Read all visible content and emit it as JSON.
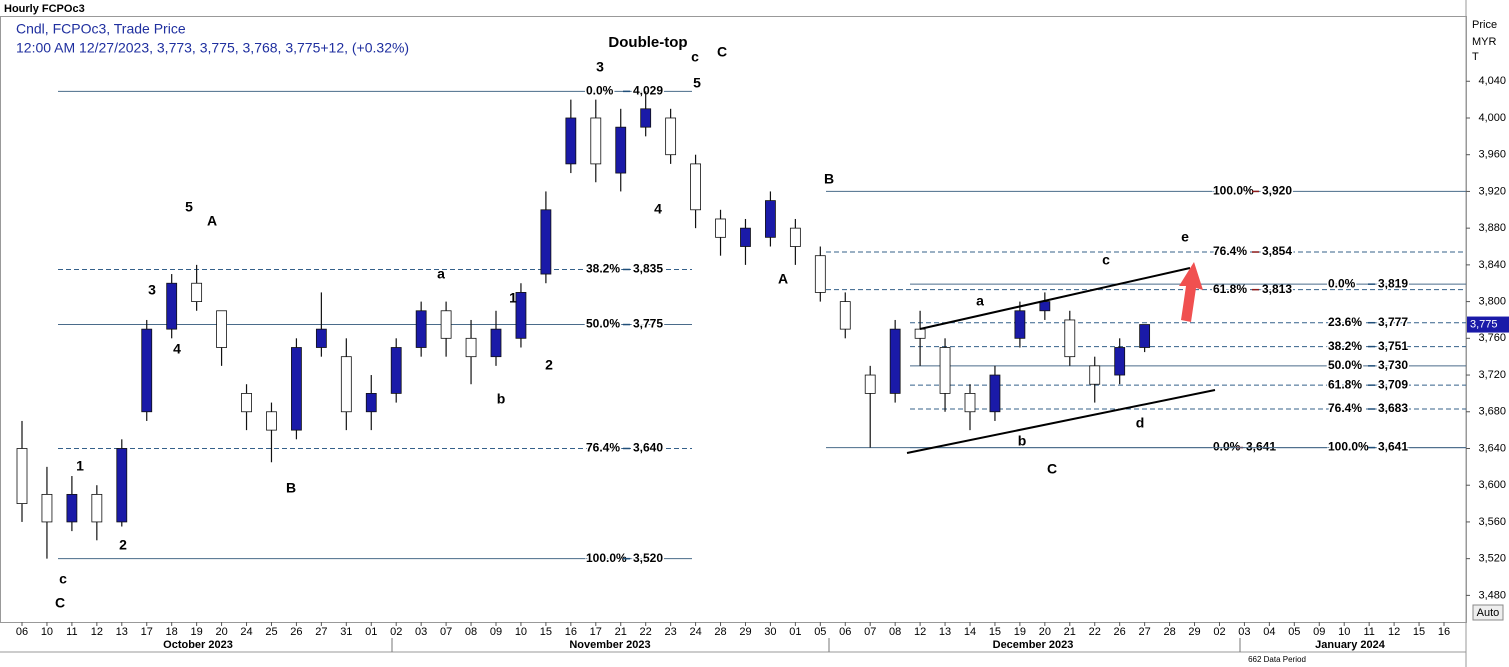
{
  "header": {
    "title": "Hourly FCPOc3",
    "series_label": "Cndl, FCPOc3, Trade Price",
    "info": "12:00 AM 12/27/2023, 3,773, 3,775, 3,768, 3,775+12, (+0.32%)"
  },
  "chart_data": {
    "type": "candlestick",
    "y_axis_title": "Price",
    "y_axis_unit": "MYR",
    "y_axis_sub": "T",
    "auto_label": "Auto",
    "months": [
      "October 2023",
      "November 2023",
      "December 2023",
      "January 2024"
    ],
    "data_period": "662 Data Period",
    "categories": [
      "06",
      "10",
      "11",
      "12",
      "13",
      "17",
      "18",
      "19",
      "20",
      "24",
      "25",
      "26",
      "27",
      "31",
      "01",
      "02",
      "03",
      "07",
      "08",
      "09",
      "10",
      "15",
      "16",
      "17",
      "21",
      "22",
      "23",
      "24",
      "28",
      "29",
      "30",
      "01",
      "05",
      "06",
      "07",
      "08",
      "12",
      "13",
      "14",
      "15",
      "19",
      "20",
      "21",
      "22",
      "26",
      "27",
      "28",
      "29",
      "02",
      "03",
      "04",
      "05",
      "09",
      "10",
      "11",
      "12",
      "15",
      "16"
    ],
    "open": [
      3640,
      3590,
      3560,
      3590,
      3560,
      3680,
      3770,
      3820,
      3790,
      3700,
      3680,
      3660,
      3750,
      3740,
      3680,
      3700,
      3750,
      3790,
      3760,
      3740,
      3760,
      3830,
      3950,
      4000,
      3940,
      3990,
      4000,
      3950,
      3890,
      3860,
      3870,
      3880,
      3850,
      3800,
      3720,
      3700,
      3770,
      3750,
      3700,
      3680,
      3760,
      3790,
      3780,
      3730,
      3720,
      3750,
      null,
      null,
      null,
      null,
      null,
      null,
      null,
      null,
      null,
      null,
      null,
      null
    ],
    "high": [
      3670,
      3620,
      3610,
      3600,
      3650,
      3780,
      3830,
      3840,
      3790,
      3710,
      3690,
      3760,
      3810,
      3760,
      3720,
      3760,
      3800,
      3800,
      3780,
      3790,
      3820,
      3920,
      4020,
      4020,
      4010,
      4029,
      4010,
      3960,
      3900,
      3890,
      3920,
      3890,
      3860,
      3810,
      3730,
      3780,
      3790,
      3760,
      3710,
      3730,
      3800,
      3810,
      3790,
      3740,
      3760,
      3775,
      null,
      null,
      null,
      null,
      null,
      null,
      null,
      null,
      null,
      null,
      null,
      null
    ],
    "low": [
      3560,
      3520,
      3550,
      3540,
      3555,
      3670,
      3760,
      3790,
      3730,
      3660,
      3625,
      3650,
      3740,
      3660,
      3660,
      3690,
      3740,
      3740,
      3710,
      3730,
      3750,
      3820,
      3940,
      3930,
      3920,
      3980,
      3950,
      3880,
      3850,
      3840,
      3860,
      3840,
      3800,
      3760,
      3641,
      3690,
      3730,
      3680,
      3660,
      3670,
      3750,
      3780,
      3730,
      3690,
      3710,
      3745,
      null,
      null,
      null,
      null,
      null,
      null,
      null,
      null,
      null,
      null,
      null,
      null
    ],
    "close": [
      3580,
      3560,
      3590,
      3560,
      3640,
      3770,
      3820,
      3800,
      3750,
      3680,
      3660,
      3750,
      3770,
      3680,
      3700,
      3750,
      3790,
      3760,
      3740,
      3770,
      3810,
      3900,
      4000,
      3950,
      3990,
      4010,
      3960,
      3900,
      3870,
      3880,
      3910,
      3860,
      3810,
      3770,
      3700,
      3770,
      3760,
      3700,
      3680,
      3720,
      3790,
      3800,
      3740,
      3710,
      3750,
      3775,
      null,
      null,
      null,
      null,
      null,
      null,
      null,
      null,
      null,
      null,
      null,
      null
    ],
    "up_color": "#1a1aa8",
    "down_color": "#ffffff",
    "ylim": [
      3451,
      4110
    ],
    "yticks": [
      {
        "value": 3480,
        "label": "3,480"
      },
      {
        "value": 3520,
        "label": "3,520"
      },
      {
        "value": 3560,
        "label": "3,560"
      },
      {
        "value": 3600,
        "label": "3,600"
      },
      {
        "value": 3640,
        "label": "3,640"
      },
      {
        "value": 3680,
        "label": "3,680"
      },
      {
        "value": 3720,
        "label": "3,720"
      },
      {
        "value": 3760,
        "label": "3,760"
      },
      {
        "value": 3800,
        "label": "3,800"
      },
      {
        "value": 3840,
        "label": "3,840"
      },
      {
        "value": 3880,
        "label": "3,880"
      },
      {
        "value": 3920,
        "label": "3,920"
      },
      {
        "value": 3960,
        "label": "3,960"
      },
      {
        "value": 4000,
        "label": "4,000"
      },
      {
        "value": 4040,
        "label": "4,040"
      }
    ],
    "last_price": {
      "value": 3775,
      "label": "3,775"
    },
    "fib_sets": [
      {
        "color": "#1f4e79",
        "levels": [
          {
            "pct": "0.0%",
            "value": 4029,
            "label": "4,029",
            "style": "solid"
          },
          {
            "pct": "38.2%",
            "value": 3835,
            "label": "3,835",
            "style": "dashed"
          },
          {
            "pct": "50.0%",
            "value": 3775,
            "label": "3,775",
            "style": "solid"
          },
          {
            "pct": "76.4%",
            "value": 3640,
            "label": "3,640",
            "style": "dashed"
          },
          {
            "pct": "100.0%",
            "value": 3520,
            "label": "3,520",
            "style": "solid"
          }
        ]
      },
      {
        "color": "#8b1a1a",
        "levels": [
          {
            "pct": "100.0%",
            "value": 3920,
            "label": "3,920",
            "style": "solid"
          },
          {
            "pct": "76.4%",
            "value": 3854,
            "label": "3,854",
            "style": "dashed"
          },
          {
            "pct": "61.8%",
            "value": 3813,
            "label": "3,813",
            "style": "dashed"
          },
          {
            "pct": "0.0%",
            "value": 3641,
            "label": "3,641",
            "style": "solid"
          }
        ]
      },
      {
        "color": "#1f4e79",
        "levels": [
          {
            "pct": "0.0%",
            "value": 3819,
            "label": "3,819",
            "style": "solid"
          },
          {
            "pct": "23.6%",
            "value": 3777,
            "label": "3,777",
            "style": "dashed"
          },
          {
            "pct": "38.2%",
            "value": 3751,
            "label": "3,751",
            "style": "dashed"
          },
          {
            "pct": "50.0%",
            "value": 3730,
            "label": "3,730",
            "style": "solid"
          },
          {
            "pct": "61.8%",
            "value": 3709,
            "label": "3,709",
            "style": "dashed"
          },
          {
            "pct": "76.4%",
            "value": 3683,
            "label": "3,683",
            "style": "dashed"
          },
          {
            "pct": "100.0%",
            "value": 3641,
            "label": "3,641",
            "style": "solid"
          }
        ]
      }
    ],
    "annotations": [
      "Double-top",
      "3",
      "c",
      "C",
      "5",
      "5",
      "A",
      "3",
      "4",
      "1",
      "2",
      "c",
      "C",
      "B",
      "a",
      "1",
      "2",
      "b",
      "4",
      "B",
      "A",
      "a",
      "c",
      "e",
      "b",
      "d",
      "C"
    ]
  }
}
